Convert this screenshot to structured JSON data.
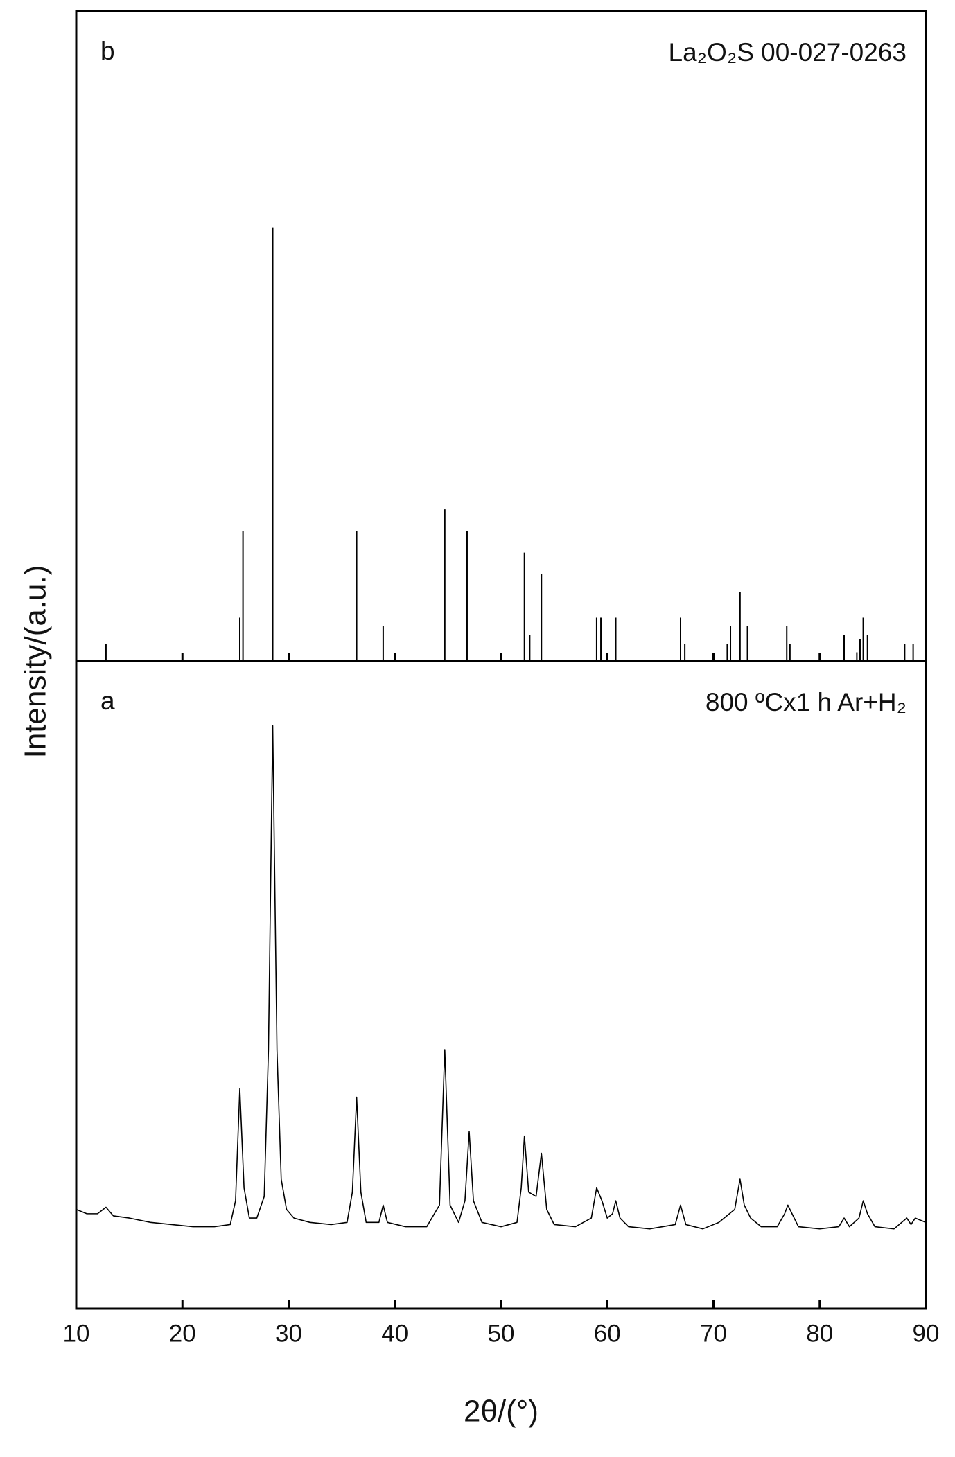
{
  "chart_data": [
    {
      "type": "stick",
      "label": "b",
      "annotation": "La₂O₂S 00-027-0263",
      "color": "#000000",
      "xlim": [
        10,
        90
      ],
      "ylim": [
        0,
        150
      ],
      "x": [
        12.8,
        25.4,
        25.7,
        28.5,
        36.4,
        38.9,
        44.7,
        46.8,
        52.2,
        52.7,
        53.8,
        59,
        59.4,
        60.8,
        66.9,
        67.3,
        71.3,
        71.6,
        72.5,
        73.2,
        76.9,
        77.2,
        82.3,
        83.5,
        83.8,
        84.1,
        84.5,
        88,
        88.8
      ],
      "values": [
        4,
        10,
        30,
        100,
        30,
        8,
        35,
        30,
        25,
        6,
        20,
        10,
        10,
        10,
        10,
        4,
        4,
        8,
        16,
        8,
        8,
        4,
        6,
        2,
        5,
        10,
        6,
        4,
        4
      ]
    },
    {
      "type": "line",
      "label": "a",
      "annotation": "800 ºCx1 h Ar+H₂",
      "color": "#000000",
      "xlim": [
        10,
        90
      ],
      "ylim": [
        0,
        150
      ],
      "xticks": [
        10,
        20,
        30,
        40,
        50,
        60,
        70,
        80,
        90
      ],
      "xlabel": "2θ/(°)",
      "ylabel": "Intensity/(a.u.)",
      "x": [
        10,
        11,
        12,
        12.8,
        13.5,
        15,
        17,
        19,
        21,
        23,
        24.5,
        25,
        25.4,
        25.8,
        26.3,
        27,
        27.7,
        28.1,
        28.5,
        28.9,
        29.3,
        29.8,
        30.5,
        32,
        34,
        35.5,
        36,
        36.4,
        36.8,
        37.3,
        38.5,
        38.9,
        39.3,
        41,
        43,
        44.2,
        44.7,
        45.2,
        46,
        46.6,
        47,
        47.4,
        48.2,
        50,
        51.5,
        51.9,
        52.2,
        52.6,
        53.3,
        53.8,
        54.3,
        55,
        57,
        58.5,
        59,
        59.5,
        60,
        60.5,
        60.8,
        61.2,
        62,
        64,
        66.4,
        66.9,
        67.4,
        69,
        70.5,
        71.5,
        72,
        72.5,
        72.9,
        73.5,
        74.5,
        76,
        76.7,
        77,
        77.4,
        78,
        80,
        81.8,
        82.3,
        82.8,
        83.7,
        84.1,
        84.5,
        85.2,
        87,
        88.2,
        88.6,
        89,
        90
      ],
      "values": [
        23,
        22,
        22,
        23.5,
        21.5,
        21,
        20,
        19.5,
        19,
        19,
        19.5,
        25,
        51,
        28,
        21,
        21,
        26,
        60,
        135,
        60,
        30,
        23,
        21,
        20,
        19.5,
        20,
        27,
        49,
        27,
        20,
        20,
        24,
        20,
        19,
        19,
        24,
        60,
        24,
        20,
        25,
        41,
        25,
        20,
        19,
        20,
        28,
        40,
        27,
        26,
        36,
        23,
        19.5,
        19,
        21,
        28,
        25,
        21,
        22,
        25,
        21,
        19,
        18.5,
        19.5,
        24,
        19.5,
        18.5,
        20,
        22,
        23,
        30,
        24,
        21,
        19,
        19,
        22,
        24,
        22,
        19,
        18.5,
        19,
        21,
        19,
        21,
        25,
        22,
        19,
        18.5,
        21,
        19.5,
        21,
        20
      ]
    }
  ]
}
